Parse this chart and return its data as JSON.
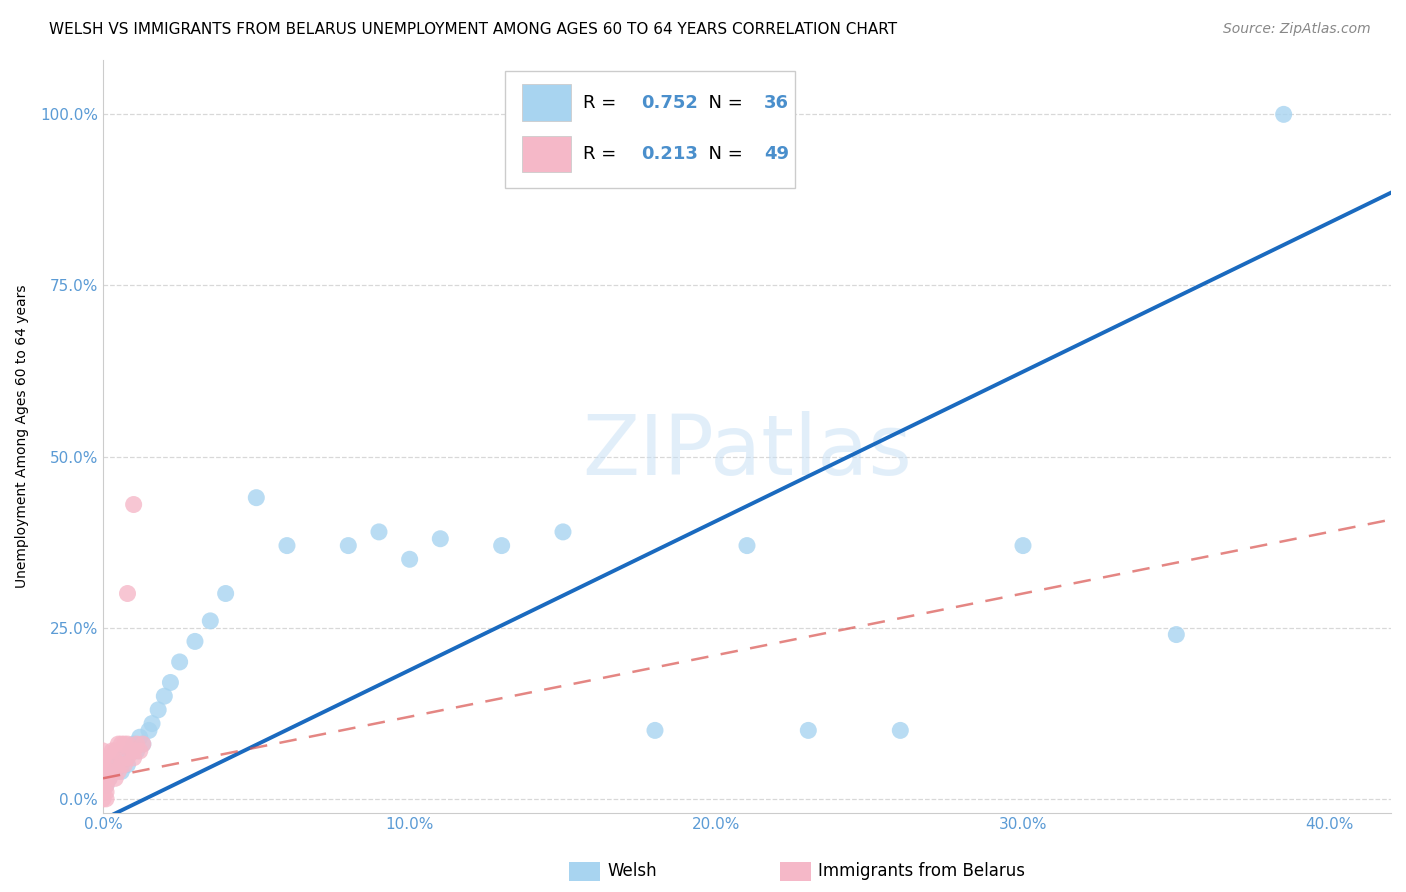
{
  "title": "WELSH VS IMMIGRANTS FROM BELARUS UNEMPLOYMENT AMONG AGES 60 TO 64 YEARS CORRELATION CHART",
  "source": "Source: ZipAtlas.com",
  "ylabel": "Unemployment Among Ages 60 to 64 years",
  "watermark": "ZIPatlas",
  "xlim": [
    0.0,
    0.42
  ],
  "ylim": [
    -0.02,
    1.08
  ],
  "xticks": [
    0.0,
    0.1,
    0.2,
    0.3,
    0.4
  ],
  "xtick_labels": [
    "0.0%",
    "10.0%",
    "20.0%",
    "30.0%",
    "40.0%"
  ],
  "yticks": [
    0.0,
    0.25,
    0.5,
    0.75,
    1.0
  ],
  "ytick_labels": [
    "0.0%",
    "25.0%",
    "50.0%",
    "75.0%",
    "100.0%"
  ],
  "welsh_color": "#a8d4f0",
  "belarus_color": "#f5b8c8",
  "welsh_line_color": "#1a6abf",
  "belarus_line_color": "#d9534f",
  "welsh_R": 0.752,
  "welsh_N": 36,
  "belarus_R": 0.213,
  "belarus_N": 49,
  "background_color": "#ffffff",
  "grid_color": "#d8d8d8",
  "axis_color": "#cccccc",
  "title_fontsize": 11,
  "label_fontsize": 10,
  "tick_fontsize": 11,
  "legend_fontsize": 13,
  "source_fontsize": 10,
  "welsh_line_m": 2.18,
  "welsh_line_b": -0.03,
  "belarus_line_m": 0.9,
  "belarus_line_b": 0.03
}
